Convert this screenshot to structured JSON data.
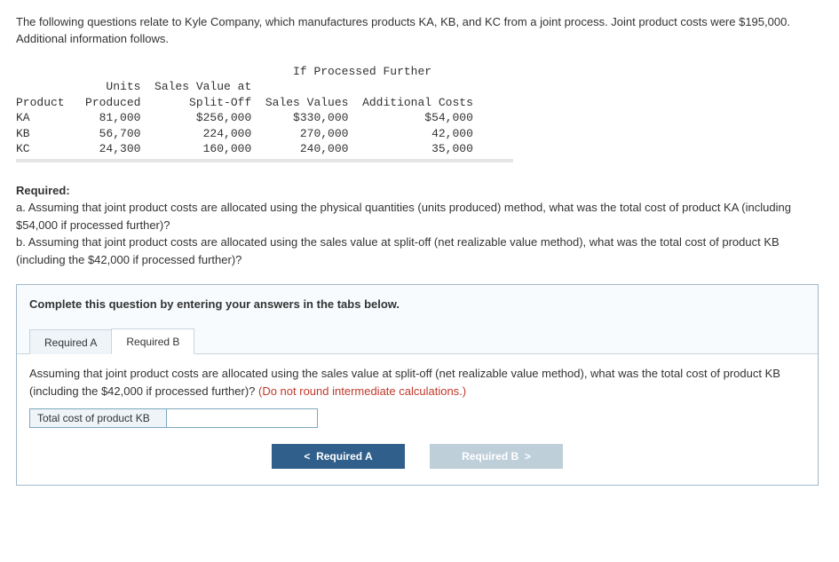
{
  "intro": "The following questions relate to Kyle Company, which manufactures products KA, KB, and KC from a joint process. Joint product costs were $195,000. Additional information follows.",
  "table": {
    "super_header": "If Processed Further",
    "col_units_l1": "Units",
    "col_product": "Product",
    "col_units_l2": "Produced",
    "col_sv_l1": "Sales Value at",
    "col_sv_l2": "Split-Off",
    "col_salesvalues": "Sales Values",
    "col_addl": "Additional Costs",
    "rows": [
      {
        "p": "KA",
        "u": "81,000",
        "sv": "$256,000",
        "s": "$330,000",
        "a": "$54,000"
      },
      {
        "p": "KB",
        "u": "56,700",
        "sv": "224,000",
        "s": "270,000",
        "a": "42,000"
      },
      {
        "p": "KC",
        "u": "24,300",
        "sv": "160,000",
        "s": "240,000",
        "a": "35,000"
      }
    ]
  },
  "required": {
    "heading": "Required:",
    "a": "a. Assuming that joint product costs are allocated using the physical quantities (units produced) method, what was the total cost of product KA (including $54,000 if processed further)?",
    "b": "b. Assuming that joint product costs are allocated using the sales value at split-off (net realizable value method), what was the total cost of product KB (including the $42,000 if processed further)?"
  },
  "answer": {
    "instruction": "Complete this question by entering your answers in the tabs below.",
    "tab_a": "Required A",
    "tab_b": "Required B",
    "panel_text_main": "Assuming that joint product costs are allocated using the sales value at split-off (net realizable value method), what was the total cost of product KB (including the $42,000 if processed further)? ",
    "panel_text_note": "(Do not round intermediate calculations.)",
    "input_label": "Total cost of product KB",
    "btn_prev": "Required A",
    "btn_next": "Required B",
    "chev_left": "<",
    "chev_right": ">"
  }
}
